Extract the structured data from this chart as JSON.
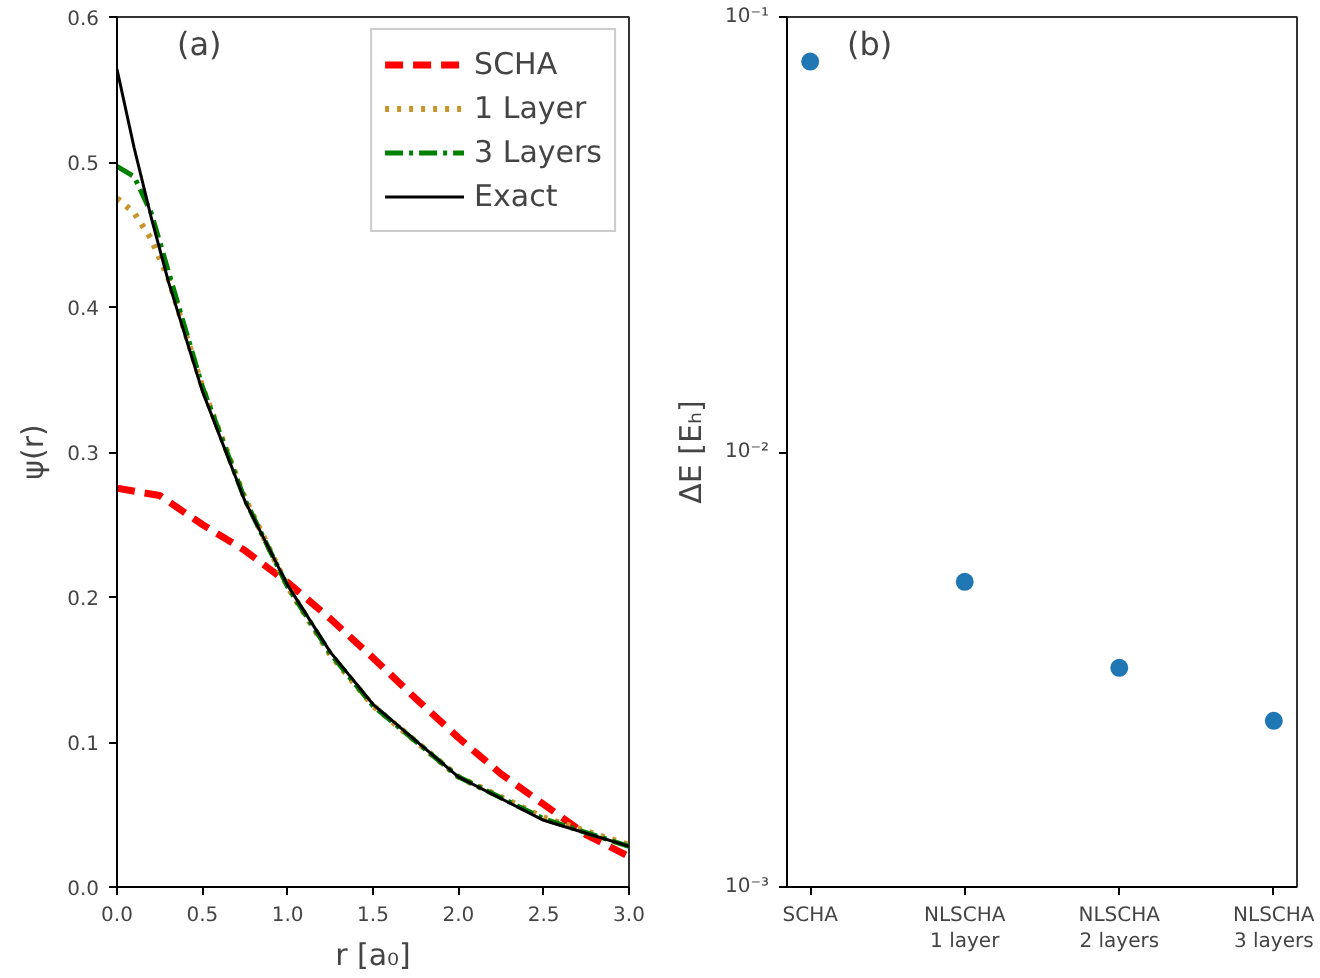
{
  "chart_data": [
    {
      "type": "line",
      "xlabel": "r [a₀]",
      "ylabel": "ψ(r)",
      "annotations": [
        "(a)"
      ],
      "xlim": [
        0,
        3
      ],
      "ylim": [
        0,
        0.6
      ],
      "xticks": [
        {
          "value": 0,
          "label": "0.0"
        },
        0.5,
        {
          "value": 1,
          "label": "1.0"
        },
        1.5,
        {
          "value": 2,
          "label": "2.0"
        },
        2.5,
        {
          "value": 3,
          "label": "3.0"
        }
      ],
      "yticks": [
        {
          "value": 0,
          "label": "0.0"
        },
        0.1,
        0.2,
        0.3,
        0.4,
        0.5,
        0.6
      ],
      "grid": false,
      "legend": "top right",
      "series": [
        {
          "name": "SCHA",
          "color": "#ff0000",
          "line_style": "dashed",
          "x": [
            0,
            0.25,
            0.5,
            0.75,
            1,
            1.25,
            1.5,
            1.75,
            2,
            2.25,
            2.5,
            2.75,
            3
          ],
          "values": [
            0.275,
            0.27,
            0.25,
            0.232,
            0.21,
            0.185,
            0.158,
            0.13,
            0.103,
            0.078,
            0.057,
            0.036,
            0.021
          ]
        },
        {
          "name": "1 Layer",
          "color": "#c8952c",
          "line_style": "dotted",
          "x": [
            0,
            0.1,
            0.2,
            0.3,
            0.5,
            0.75,
            1,
            1.25,
            1.5,
            2,
            2.5,
            3
          ],
          "values": [
            0.475,
            0.465,
            0.447,
            0.42,
            0.345,
            0.268,
            0.207,
            0.16,
            0.125,
            0.076,
            0.048,
            0.029
          ]
        },
        {
          "name": "3 Layers",
          "color": "#008000",
          "line_style": "dashdot",
          "x": [
            0,
            0.1,
            0.2,
            0.3,
            0.5,
            0.75,
            1,
            1.25,
            1.5,
            2,
            2.5,
            3
          ],
          "values": [
            0.497,
            0.49,
            0.465,
            0.425,
            0.345,
            0.267,
            0.207,
            0.161,
            0.125,
            0.076,
            0.047,
            0.028
          ]
        },
        {
          "name": "Exact",
          "color": "#000000",
          "line_style": "solid",
          "x": [
            0,
            0.1,
            0.2,
            0.3,
            0.5,
            0.75,
            1,
            1.25,
            1.5,
            2,
            2.5,
            3
          ],
          "values": [
            0.564,
            0.51,
            0.462,
            0.418,
            0.342,
            0.266,
            0.208,
            0.162,
            0.126,
            0.076,
            0.046,
            0.028
          ]
        }
      ]
    },
    {
      "type": "scatter",
      "ylabel": "ΔE [Eₕ]",
      "annotations": [
        "(b)"
      ],
      "log": true,
      "marker": "circle",
      "grid": false,
      "categories": [
        "SCHA",
        "NLSCHA\n1 layer",
        "NLSCHA\n2 layers",
        "NLSCHA\n3 layers"
      ],
      "ylim": [
        0.001,
        0.1
      ],
      "yticks": [
        {
          "value": 0.001,
          "label": "10⁻³"
        },
        {
          "value": 0.01,
          "label": "10⁻²"
        },
        {
          "value": 0.1,
          "label": "10⁻¹"
        }
      ],
      "color": "#1f77b4",
      "values": [
        0.079,
        0.00503,
        0.00319,
        0.00241
      ]
    }
  ]
}
